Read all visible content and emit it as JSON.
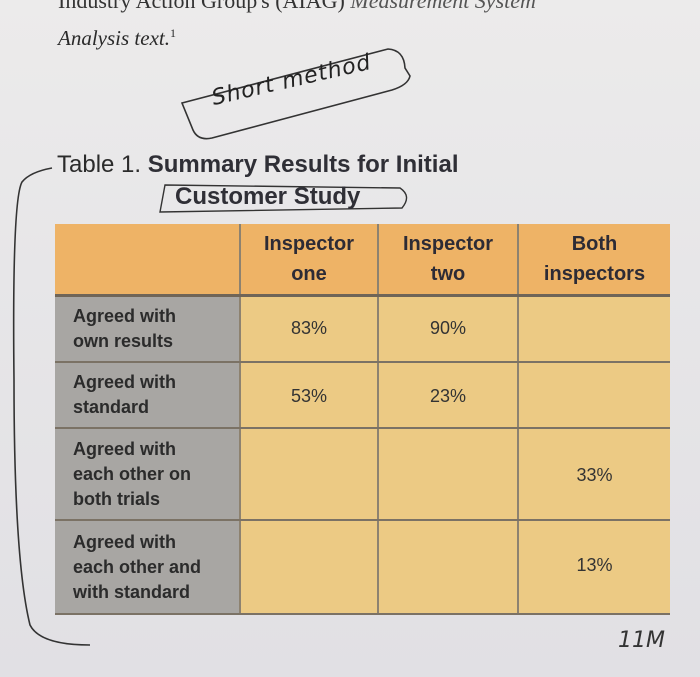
{
  "header": {
    "top_line": "Industry Action Group's (AIAG)",
    "top_line_italic": "Measurement System",
    "analysis_text": "Analysis text.",
    "footnote_mark": "1"
  },
  "annotation": {
    "handwritten_note": "Short method"
  },
  "table": {
    "caption_prefix": "Table 1.",
    "caption_bold_1": "Summary Results for Initial",
    "caption_bold_2": "Customer Study",
    "columns": [
      "",
      "Inspector one",
      "Inspector two",
      "Both inspectors"
    ],
    "column_lines": [
      [
        "",
        ""
      ],
      [
        "Inspector",
        "one"
      ],
      [
        "Inspector",
        "two"
      ],
      [
        "Both",
        "inspectors"
      ]
    ],
    "rows": [
      {
        "label_lines": [
          "Agreed with",
          "own results"
        ],
        "one": "83%",
        "two": "90%",
        "both": ""
      },
      {
        "label_lines": [
          "Agreed with",
          "standard"
        ],
        "one": "53%",
        "two": "23%",
        "both": ""
      },
      {
        "label_lines": [
          "Agreed with",
          "each other on",
          "both trials"
        ],
        "one": "",
        "two": "",
        "both": "33%"
      },
      {
        "label_lines": [
          "Agreed with",
          "each other and",
          "with standard"
        ],
        "one": "",
        "two": "",
        "both": "13%"
      }
    ]
  },
  "footer": {
    "handwritten_mark": "11M"
  },
  "colors": {
    "header_orange": "#eeb366",
    "cell_yellow": "#ecca84",
    "rowhead_gray": "#a8a6a3"
  }
}
